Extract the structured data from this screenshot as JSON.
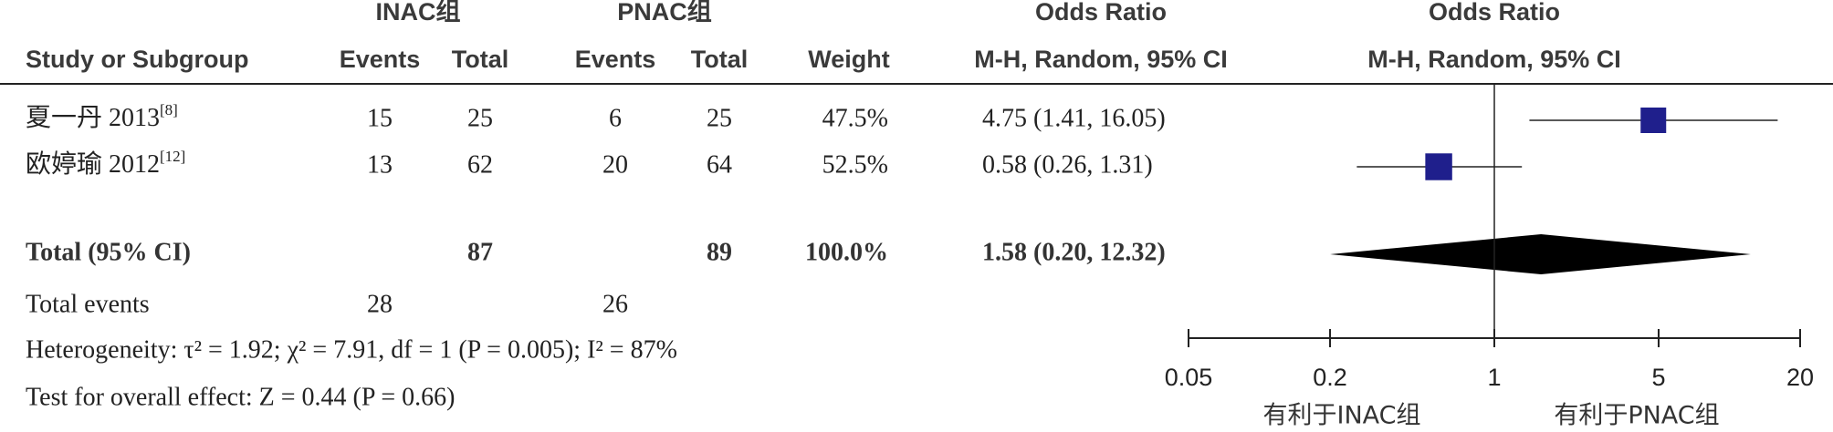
{
  "chart_data": {
    "type": "forest",
    "headers": {
      "group1": "INAC组",
      "group2": "PNAC组",
      "or_left": "Odds Ratio",
      "or_right": "Odds Ratio",
      "study": "Study or Subgroup",
      "events1": "Events",
      "total1": "Total",
      "events2": "Events",
      "total2": "Total",
      "weight": "Weight",
      "method_left": "M-H, Random, 95% CI",
      "method_right": "M-H, Random, 95% CI"
    },
    "studies": [
      {
        "name": "夏一丹 2013",
        "ref": "[8]",
        "events1": 15,
        "total1": 25,
        "events2": 6,
        "total2": 25,
        "weight": 47.5,
        "weight_label": "47.5%",
        "or": 4.75,
        "ci": [
          1.41,
          16.05
        ],
        "or_label": "4.75 (1.41, 16.05)"
      },
      {
        "name": "欧婷瑜 2012",
        "ref": "[12]",
        "events1": 13,
        "total1": 62,
        "events2": 20,
        "total2": 64,
        "weight": 52.5,
        "weight_label": "52.5%",
        "or": 0.58,
        "ci": [
          0.26,
          1.31
        ],
        "or_label": "0.58 (0.26, 1.31)"
      }
    ],
    "total": {
      "name": "Total (95% CI)",
      "total1": 87,
      "total2": 89,
      "weight": 100,
      "weight_label": "100.0%",
      "or": 1.58,
      "ci": [
        0.2,
        12.32
      ],
      "or_label": "1.58 (0.20, 12.32)"
    },
    "total_events": {
      "label": "Total events",
      "events1": 28,
      "events2": 26
    },
    "heterogeneity": "Heterogeneity: τ² = 1.92; χ² = 7.91, df = 1 (P = 0.005); I² = 87%",
    "overall": "Test for overall effect: Z = 0.44 (P = 0.66)",
    "xscale": "log",
    "xlim": [
      0.05,
      20
    ],
    "xticks": [
      0.05,
      0.2,
      1,
      5,
      20
    ],
    "favours_left": "有利于INAC组",
    "favours_right": "有利于PNAC组",
    "square_color": "#1f1f8c",
    "diamond_color": "#000000"
  }
}
